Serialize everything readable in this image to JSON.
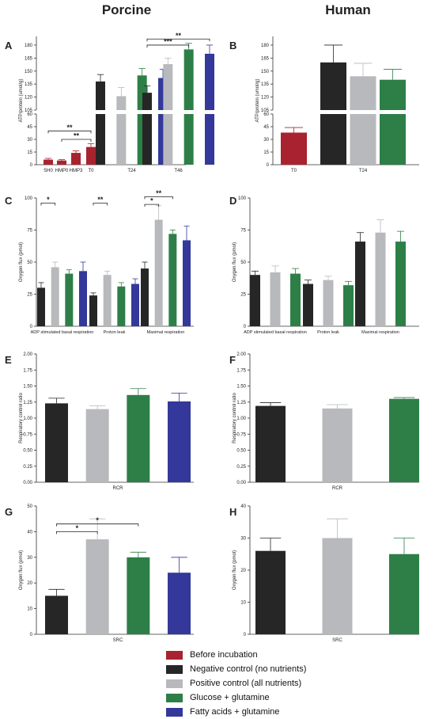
{
  "columns": {
    "left": "Porcine",
    "right": "Human"
  },
  "colors": {
    "before": "#a8232f",
    "neg": "#262626",
    "pos": "#b8b9bc",
    "glc": "#2d7f47",
    "fa": "#33389a"
  },
  "legend": [
    {
      "label": "Before incubation",
      "color": "#a8232f"
    },
    {
      "label": "Negative control (no nutrients)",
      "color": "#262626"
    },
    {
      "label": "Positive control (all nutrients)",
      "color": "#b8b9bc"
    },
    {
      "label": "Glucose + glutamine",
      "color": "#2d7f47"
    },
    {
      "label": "Fatty acids + glutamine",
      "color": "#33389a"
    }
  ],
  "chart_data": [
    {
      "panel": "A",
      "type": "bar",
      "ylabel": "ATP/protein (umol/g)",
      "ylim_low": [
        0,
        60
      ],
      "ylim_high": [
        105,
        190
      ],
      "yticks_low": [
        "0",
        "15",
        "30",
        "45",
        "60"
      ],
      "yticks_high": [
        "105",
        "120",
        "135",
        "150",
        "165",
        "180"
      ],
      "categories": [
        "SH0",
        "HMP0",
        "HMP3",
        "T0",
        "T24",
        "T46"
      ],
      "groups": [
        {
          "label": "SH0",
          "bars": [
            {
              "color": "before",
              "value": 6,
              "err": 1.5
            }
          ]
        },
        {
          "label": "HMP0",
          "bars": [
            {
              "color": "before",
              "value": 5,
              "err": 1
            }
          ]
        },
        {
          "label": "HMP3",
          "bars": [
            {
              "color": "before",
              "value": 14,
              "err": 2.5
            }
          ]
        },
        {
          "label": "T0",
          "bars": [
            {
              "color": "before",
              "value": 21,
              "err": 4
            }
          ]
        },
        {
          "label": "T24",
          "bars": [
            {
              "color": "neg",
              "value": 138,
              "err": 8
            },
            {
              "color": "pos",
              "value": 121,
              "err": 10
            },
            {
              "color": "glc",
              "value": 145,
              "err": 8
            },
            {
              "color": "fa",
              "value": 142,
              "err": 10
            }
          ]
        },
        {
          "label": "T46",
          "bars": [
            {
              "color": "neg",
              "value": 125,
              "err": 8
            },
            {
              "color": "pos",
              "value": 158,
              "err": 7
            },
            {
              "color": "glc",
              "value": 175,
              "err": 7
            },
            {
              "color": "fa",
              "value": 170,
              "err": 10
            }
          ]
        }
      ],
      "annotations": [
        {
          "text": "**",
          "from": [
            0,
            0
          ],
          "to": [
            3,
            0
          ],
          "value": 40
        },
        {
          "text": "**",
          "from": [
            1,
            0
          ],
          "to": [
            3,
            0
          ],
          "value": 30
        },
        {
          "text": "**",
          "from": [
            5,
            0
          ],
          "to": [
            5,
            3
          ],
          "value": 187
        },
        {
          "text": "***",
          "from": [
            5,
            0
          ],
          "to": [
            5,
            2
          ],
          "value": 180
        }
      ]
    },
    {
      "panel": "B",
      "type": "bar",
      "ylabel": "ATP/protein (umol/g)",
      "ylim_low": [
        0,
        60
      ],
      "ylim_high": [
        105,
        190
      ],
      "yticks_low": [
        "0",
        "15",
        "30",
        "45",
        "60"
      ],
      "yticks_high": [
        "105",
        "120",
        "135",
        "150",
        "165",
        "180"
      ],
      "categories": [
        "T0",
        "T24"
      ],
      "groups": [
        {
          "label": "T0",
          "bars": [
            {
              "color": "before",
              "value": 38,
              "err": 6
            }
          ]
        },
        {
          "label": "T24",
          "bars": [
            {
              "color": "neg",
              "value": 160,
              "err": 20
            },
            {
              "color": "pos",
              "value": 144,
              "err": 15
            },
            {
              "color": "glc",
              "value": 140,
              "err": 12
            }
          ]
        }
      ],
      "annotations": []
    },
    {
      "panel": "C",
      "type": "bar",
      "ylabel": "Oxygen flux (pmol)",
      "ylim": [
        0,
        100
      ],
      "yticks": [
        "0",
        "25",
        "50",
        "75",
        "100"
      ],
      "categories": [
        "ADP stimulated basal respiration",
        "Proton leak",
        "Maximal respiration"
      ],
      "groups": [
        {
          "label": "ADP stimulated basal respiration",
          "bars": [
            {
              "color": "neg",
              "value": 30,
              "err": 4
            },
            {
              "color": "pos",
              "value": 46,
              "err": 4
            },
            {
              "color": "glc",
              "value": 41,
              "err": 3
            },
            {
              "color": "fa",
              "value": 43,
              "err": 7
            }
          ]
        },
        {
          "label": "Proton leak",
          "bars": [
            {
              "color": "neg",
              "value": 24,
              "err": 2
            },
            {
              "color": "pos",
              "value": 40,
              "err": 3
            },
            {
              "color": "glc",
              "value": 31,
              "err": 3
            },
            {
              "color": "fa",
              "value": 33,
              "err": 4
            }
          ]
        },
        {
          "label": "Maximal respiration",
          "bars": [
            {
              "color": "neg",
              "value": 45,
              "err": 5
            },
            {
              "color": "pos",
              "value": 83,
              "err": 11
            },
            {
              "color": "glc",
              "value": 72,
              "err": 3
            },
            {
              "color": "fa",
              "value": 67,
              "err": 11
            }
          ]
        }
      ],
      "annotations": [
        {
          "text": "*",
          "from": [
            0,
            0
          ],
          "to": [
            0,
            1
          ],
          "value": 96
        },
        {
          "text": "**",
          "from": [
            1,
            0
          ],
          "to": [
            1,
            1
          ],
          "value": 96
        },
        {
          "text": "**",
          "from": [
            2,
            0
          ],
          "to": [
            2,
            2
          ],
          "value": 101
        },
        {
          "text": "*",
          "from": [
            2,
            0
          ],
          "to": [
            2,
            1
          ],
          "value": 95
        }
      ]
    },
    {
      "panel": "D",
      "type": "bar",
      "ylabel": "Oxygen flux (pmol)",
      "ylim": [
        0,
        100
      ],
      "yticks": [
        "0",
        "25",
        "50",
        "75",
        "100"
      ],
      "categories": [
        "ADP stimulated basal respiration",
        "Proton leak",
        "Maximal respiration"
      ],
      "groups": [
        {
          "label": "ADP stimulated basal respiration",
          "bars": [
            {
              "color": "neg",
              "value": 40,
              "err": 3
            },
            {
              "color": "pos",
              "value": 42,
              "err": 5
            },
            {
              "color": "glc",
              "value": 41,
              "err": 4
            }
          ]
        },
        {
          "label": "Proton leak",
          "bars": [
            {
              "color": "neg",
              "value": 33,
              "err": 3
            },
            {
              "color": "pos",
              "value": 36,
              "err": 3
            },
            {
              "color": "glc",
              "value": 32,
              "err": 3
            }
          ]
        },
        {
          "label": "Maximal respiration",
          "bars": [
            {
              "color": "neg",
              "value": 66,
              "err": 7
            },
            {
              "color": "pos",
              "value": 73,
              "err": 10
            },
            {
              "color": "glc",
              "value": 66,
              "err": 8
            }
          ]
        }
      ],
      "annotations": []
    },
    {
      "panel": "E",
      "type": "bar",
      "ylabel": "Respiratory control ratio",
      "ylim": [
        0,
        2
      ],
      "yticks": [
        "0.00",
        "0.25",
        "0.50",
        "0.75",
        "1.00",
        "1.25",
        "1.50",
        "1.75",
        "2.00"
      ],
      "categories": [
        "RCR"
      ],
      "groups": [
        {
          "label": "RCR",
          "bars": [
            {
              "color": "neg",
              "value": 1.23,
              "err": 0.08
            },
            {
              "color": "pos",
              "value": 1.14,
              "err": 0.05
            },
            {
              "color": "glc",
              "value": 1.36,
              "err": 0.1
            },
            {
              "color": "fa",
              "value": 1.26,
              "err": 0.13
            }
          ]
        }
      ],
      "annotations": []
    },
    {
      "panel": "F",
      "type": "bar",
      "ylabel": "Respiratory control ratio",
      "ylim": [
        0,
        2
      ],
      "yticks": [
        "0.00",
        "0.25",
        "0.50",
        "0.75",
        "1.00",
        "1.25",
        "1.50",
        "1.75",
        "2.00"
      ],
      "categories": [
        "RCR"
      ],
      "groups": [
        {
          "label": "RCR",
          "bars": [
            {
              "color": "neg",
              "value": 1.19,
              "err": 0.05
            },
            {
              "color": "pos",
              "value": 1.15,
              "err": 0.06
            },
            {
              "color": "glc",
              "value": 1.3,
              "err": 0.02
            }
          ]
        }
      ],
      "annotations": []
    },
    {
      "panel": "G",
      "type": "bar",
      "ylabel": "Oxygen flux (pmol)",
      "ylim": [
        0,
        50
      ],
      "yticks": [
        "0",
        "10",
        "20",
        "30",
        "40",
        "50"
      ],
      "categories": [
        "SRC"
      ],
      "groups": [
        {
          "label": "SRC",
          "bars": [
            {
              "color": "neg",
              "value": 15,
              "err": 2.5
            },
            {
              "color": "pos",
              "value": 37,
              "err": 8
            },
            {
              "color": "glc",
              "value": 30,
              "err": 2
            },
            {
              "color": "fa",
              "value": 24,
              "err": 6
            }
          ]
        }
      ],
      "annotations": [
        {
          "text": "*",
          "from": [
            0,
            0
          ],
          "to": [
            0,
            2
          ],
          "value": 43
        },
        {
          "text": "*",
          "from": [
            0,
            0
          ],
          "to": [
            0,
            1
          ],
          "value": 40
        }
      ]
    },
    {
      "panel": "H",
      "type": "bar",
      "ylabel": "Oxygen flux (pmol)",
      "ylim": [
        0,
        40
      ],
      "yticks": [
        "0",
        "10",
        "20",
        "30",
        "40"
      ],
      "categories": [
        "SRC"
      ],
      "groups": [
        {
          "label": "SRC",
          "bars": [
            {
              "color": "neg",
              "value": 26,
              "err": 4
            },
            {
              "color": "pos",
              "value": 30,
              "err": 6
            },
            {
              "color": "glc",
              "value": 25,
              "err": 5
            }
          ]
        }
      ],
      "annotations": []
    }
  ]
}
